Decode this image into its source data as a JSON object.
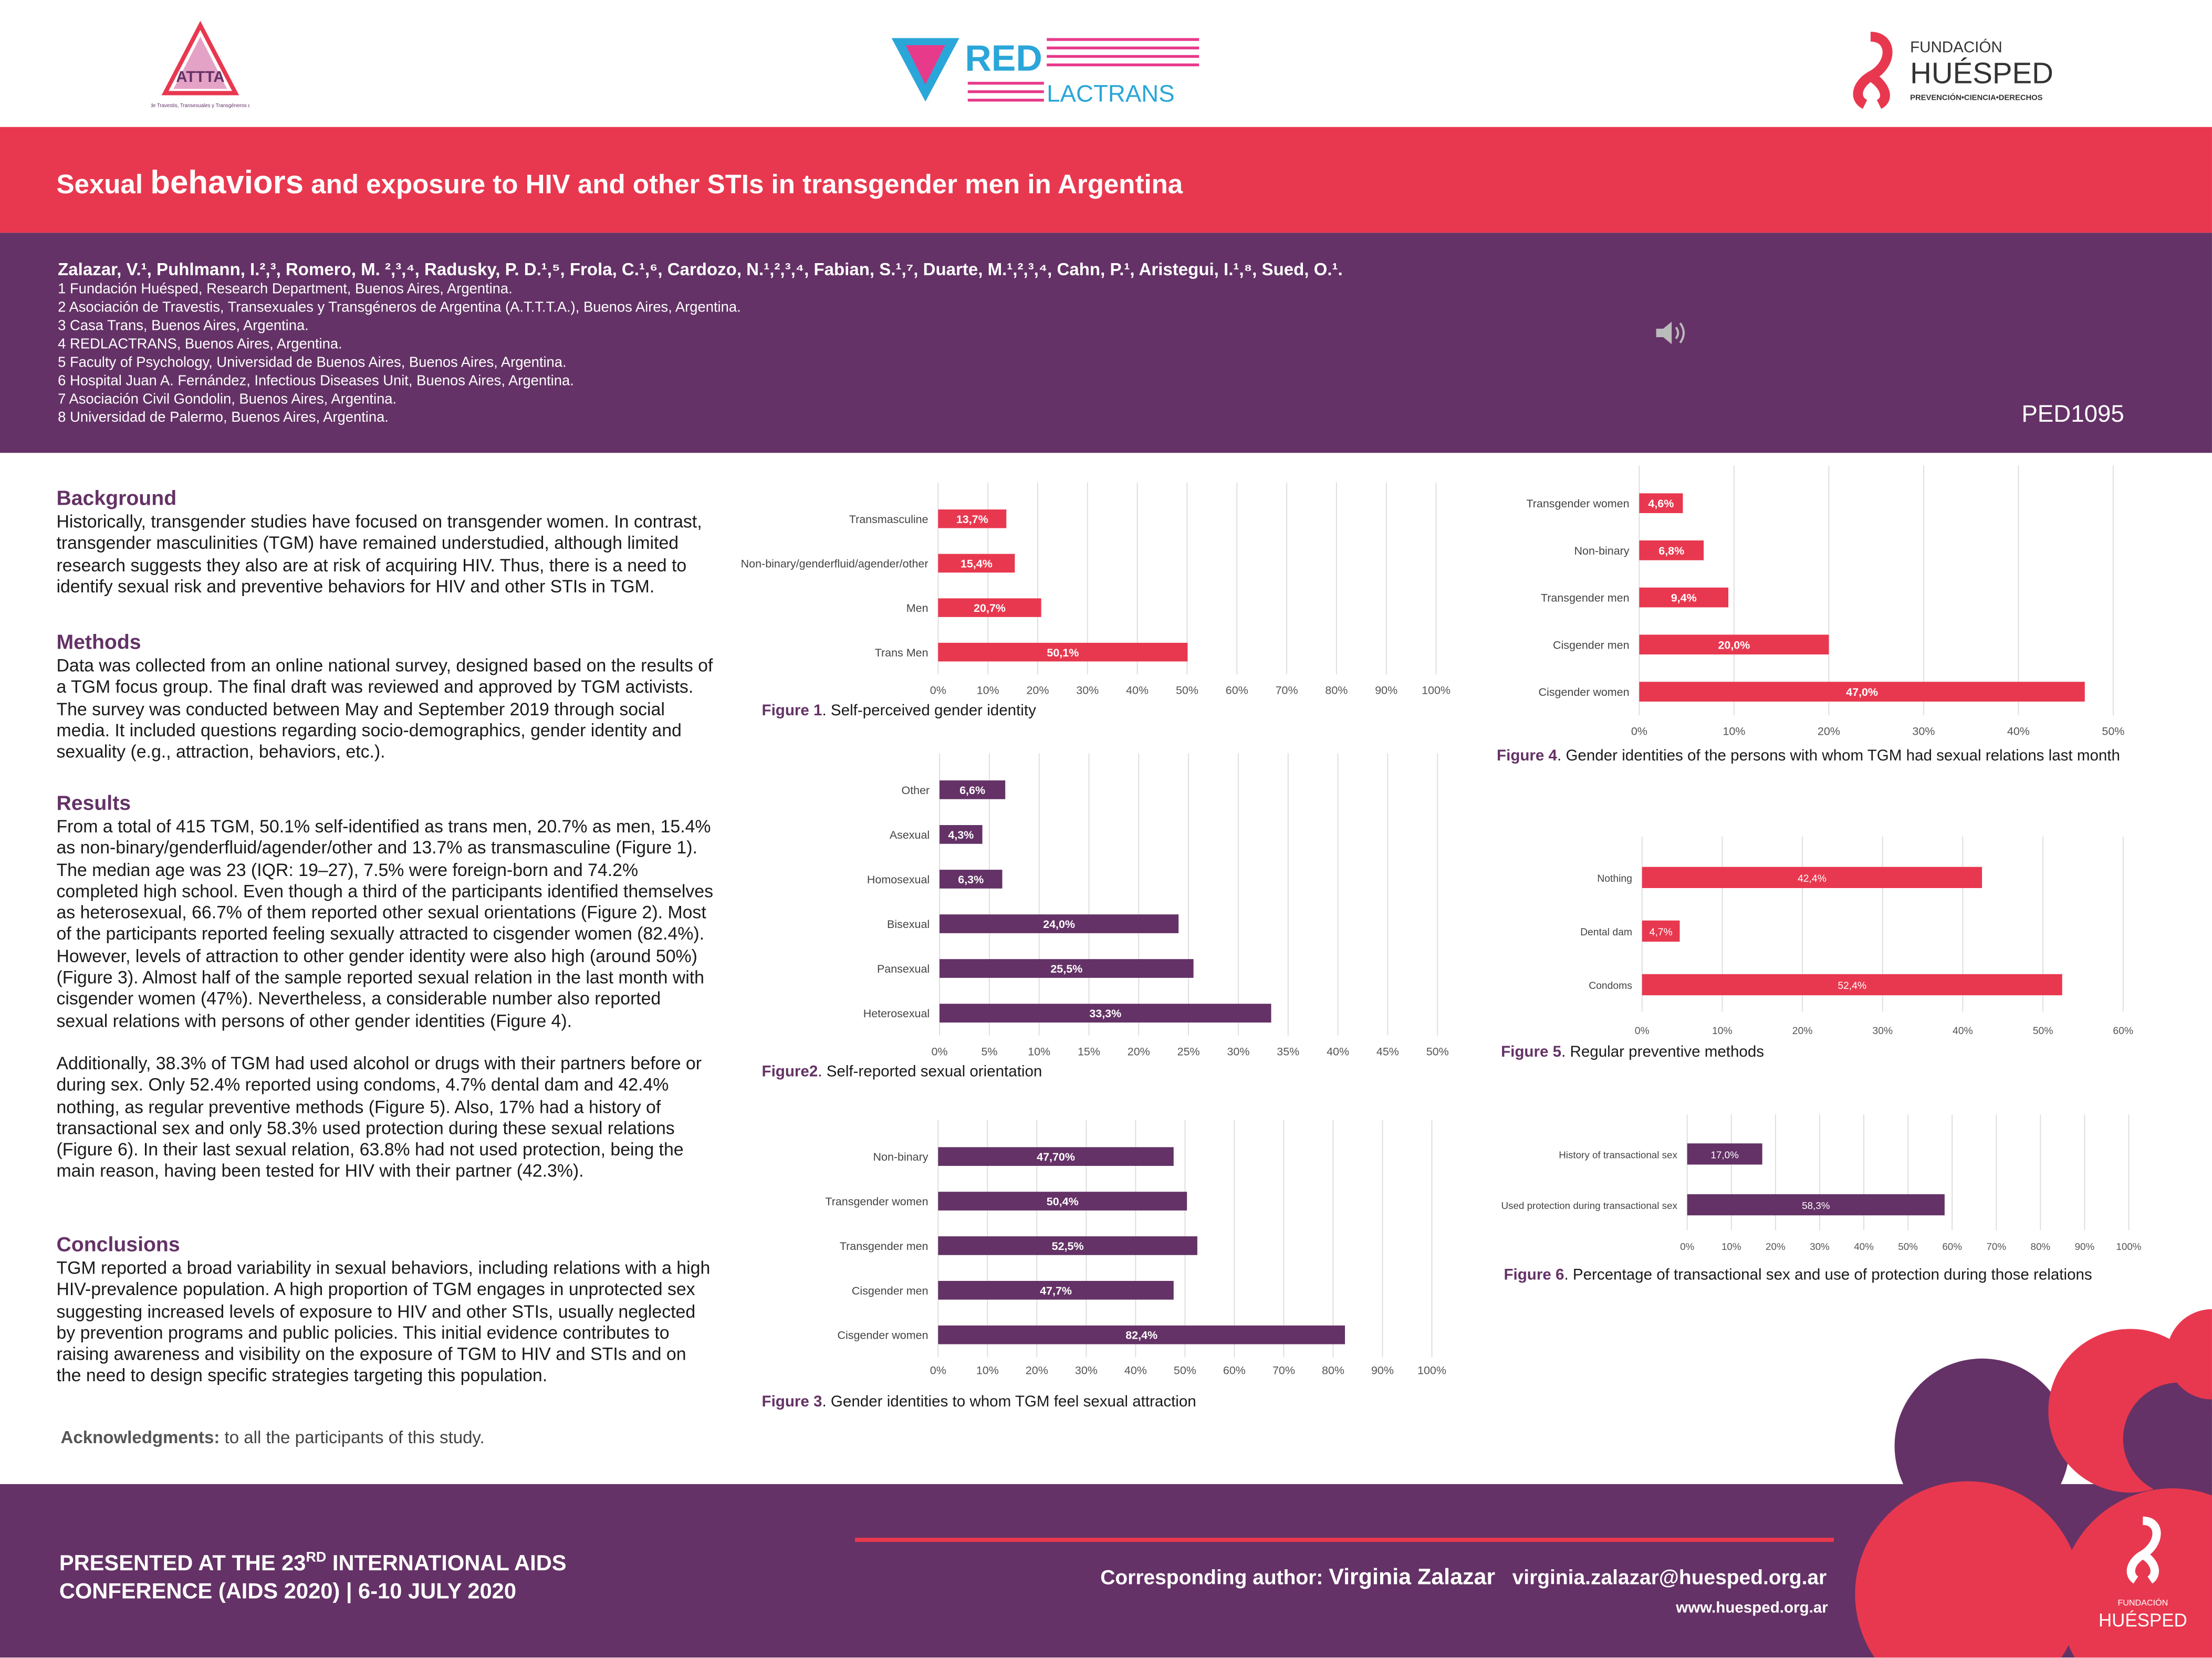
{
  "logos": {
    "attta": "Asociación de Travestis, Transexuales y Transgéneros de Argentina",
    "red": "RED",
    "lactrans": "LACTRANS",
    "fundacion": "FUNDACIÓN",
    "huesped": "HUÉSPED",
    "tagline": "PREVENCIÓN•CIENCIA•DERECHOS"
  },
  "header": {
    "title_pre": "Sexual ",
    "title_big": "behaviors",
    "title_post": " and exposure to HIV and other STIs in transgender men in Argentina",
    "authors": "Zalazar, V.¹, Puhlmann, I.²,³, Romero, M. ²,³,⁴, Radusky, P. D.¹,⁵, Frola, C.¹,⁶, Cardozo, N.¹,²,³,⁴, Fabian, S.¹,⁷, Duarte, M.¹,²,³,⁴, Cahn, P.¹, Aristegui, I.¹,⁸, Sued, O.¹.",
    "affiliations": [
      "1 Fundación Huésped, Research Department, Buenos Aires, Argentina.",
      "2 Asociación de Travestis, Transexuales y Transgéneros de Argentina (A.T.T.T.A.), Buenos Aires, Argentina.",
      "3 Casa Trans, Buenos Aires, Argentina.",
      "4 REDLACTRANS, Buenos Aires, Argentina.",
      "5 Faculty of Psychology, Universidad de Buenos Aires, Buenos Aires, Argentina.",
      "6 Hospital Juan A. Fernández, Infectious Diseases Unit, Buenos Aires, Argentina.",
      "7 Asociación Civil Gondolin, Buenos Aires, Argentina.",
      "8 Universidad de Palermo, Buenos Aires, Argentina."
    ],
    "code": "PED1095",
    "speaker_icon": "speaker-icon"
  },
  "sections": {
    "background": {
      "heading": "Background",
      "text": "Historically, transgender studies have focused on transgender women. In contrast, transgender masculinities (TGM) have remained understudied, although limited research suggests they also are at risk of acquiring HIV. Thus, there is a need to identify sexual risk and preventive behaviors for HIV and other STIs in TGM."
    },
    "methods": {
      "heading": "Methods",
      "text": "Data was collected from an online national survey, designed based on the results of a TGM focus group. The final draft was reviewed and approved by TGM activists. The survey was conducted between May and September 2019 through social media. It included questions regarding socio-demographics, gender identity and sexuality (e.g., attraction, behaviors, etc.)."
    },
    "results": {
      "heading": "Results",
      "text": "From a total of 415 TGM, 50.1% self-identified as trans men, 20.7% as men, 15.4% as non-binary/genderfluid/agender/other and 13.7% as transmasculine (Figure 1). The median age was 23 (IQR: 19–27), 7.5% were foreign-born and 74.2% completed high school. Even though a third of the participants identified themselves as heterosexual, 66.7% of them reported other sexual orientations (Figure 2). Most of the participants reported feeling sexually attracted to cisgender women (82.4%). However, levels of attraction to other gender identity were also high (around 50%) (Figure 3). Almost half of the sample reported sexual relation in the last month with cisgender women (47%). Nevertheless, a considerable number also reported sexual relations with persons of other gender identities (Figure 4).",
      "text2": "Additionally, 38.3% of TGM had used alcohol or drugs with their partners before or during sex. Only 52.4% reported using condoms, 4.7% dental dam and 42.4% nothing, as regular preventive methods (Figure 5). Also, 17% had a history of transactional sex and only 58.3% used protection during these sexual relations (Figure 6). In their last sexual relation, 63.8% had not used protection, being the main reason, having been tested for HIV with their partner (42.3%)."
    },
    "conclusions": {
      "heading": "Conclusions",
      "text": "TGM reported a broad variability in sexual behaviors, including relations with a high HIV-prevalence population. A high proportion of TGM engages in unprotected sex suggesting increased levels of exposure to HIV and other STIs, usually neglected by prevention programs and public policies. This initial evidence contributes to raising awareness and visibility on the exposure of TGM to HIV and STIs and on the need to design specific strategies targeting this population."
    },
    "ack_label": "Acknowledgments:",
    "ack_text": " to all the participants of this study."
  },
  "colors": {
    "red": "#e8384f",
    "purple": "#643266"
  },
  "chart_data": [
    {
      "type": "bar",
      "orientation": "horizontal",
      "fig": "Figure 1",
      "caption": ". Self-perceived gender identity",
      "color": "#e8384f",
      "xlim": [
        0,
        100
      ],
      "ticks": [
        "0%",
        "10%",
        "20%",
        "30%",
        "40%",
        "50%",
        "60%",
        "70%",
        "80%",
        "90%",
        "100%"
      ],
      "grid": true,
      "categories": [
        "Transmasculine",
        "Non-binary/genderfluid/agender/other",
        "Men",
        "Trans Men"
      ],
      "values": [
        13.7,
        15.4,
        20.7,
        50.1
      ],
      "labels": [
        "13,7%",
        "15,4%",
        "20,7%",
        "50,1%"
      ]
    },
    {
      "type": "bar",
      "orientation": "horizontal",
      "fig": "Figure2",
      "caption": ". Self-reported sexual orientation",
      "color": "#643266",
      "xlim": [
        0,
        50
      ],
      "ticks": [
        "0%",
        "5%",
        "10%",
        "15%",
        "20%",
        "25%",
        "30%",
        "35%",
        "40%",
        "45%",
        "50%"
      ],
      "grid": true,
      "categories": [
        "Other",
        "Asexual",
        "Homosexual",
        "Bisexual",
        "Pansexual",
        "Heterosexual"
      ],
      "values": [
        6.6,
        4.3,
        6.3,
        24.0,
        25.5,
        33.3
      ],
      "labels": [
        "6,6%",
        "4,3%",
        "6,3%",
        "24,0%",
        "25,5%",
        "33,3%"
      ]
    },
    {
      "type": "bar",
      "orientation": "horizontal",
      "fig": "Figure 3",
      "caption": ". Gender identities to whom TGM feel sexual attraction",
      "color": "#643266",
      "xlim": [
        0,
        100
      ],
      "ticks": [
        "0%",
        "10%",
        "20%",
        "30%",
        "40%",
        "50%",
        "60%",
        "70%",
        "80%",
        "90%",
        "100%"
      ],
      "grid": true,
      "categories": [
        "Non-binary",
        "Transgender women",
        "Transgender men",
        "Cisgender men",
        "Cisgender women"
      ],
      "values": [
        47.7,
        50.4,
        52.5,
        47.7,
        82.4
      ],
      "labels": [
        "47,70%",
        "50,4%",
        "52,5%",
        "47,7%",
        "82,4%"
      ]
    },
    {
      "type": "bar",
      "orientation": "horizontal",
      "fig": "Figure 4",
      "caption": ". Gender identities of the persons with whom TGM had sexual relations last month",
      "color": "#e8384f",
      "xlim": [
        0,
        50
      ],
      "ticks": [
        "0%",
        "10%",
        "20%",
        "30%",
        "40%",
        "50%"
      ],
      "grid": true,
      "categories": [
        "Transgender women",
        "Non-binary",
        "Transgender men",
        "Cisgender men",
        "Cisgender women"
      ],
      "values": [
        4.6,
        6.8,
        9.4,
        20.0,
        47.0
      ],
      "labels": [
        "4,6%",
        "6,8%",
        "9,4%",
        "20,0%",
        "47,0%"
      ]
    },
    {
      "type": "bar",
      "orientation": "horizontal",
      "fig": "Figure 5",
      "caption": ". Regular preventive methods",
      "color": "#e8384f",
      "xlim": [
        0,
        60
      ],
      "ticks": [
        "0%",
        "10%",
        "20%",
        "30%",
        "40%",
        "50%",
        "60%"
      ],
      "grid": true,
      "categories": [
        "Nothing",
        "Dental dam",
        "Condoms"
      ],
      "values": [
        42.4,
        4.7,
        52.4
      ],
      "labels": [
        "42,4%",
        "4,7%",
        "52,4%"
      ]
    },
    {
      "type": "bar",
      "orientation": "horizontal",
      "fig": "Figure 6",
      "caption": ". Percentage of transactional sex and use of protection during those relations",
      "color": "#643266",
      "xlim": [
        0,
        100
      ],
      "ticks": [
        "0%",
        "10%",
        "20%",
        "30%",
        "40%",
        "50%",
        "60%",
        "70%",
        "80%",
        "90%",
        "100%"
      ],
      "grid": true,
      "categories": [
        "History of transactional sex",
        "Used protection during transactional sex"
      ],
      "values": [
        17.0,
        58.3
      ],
      "labels": [
        "17,0%",
        "58,3%"
      ]
    }
  ],
  "footer": {
    "presented_1": "PRESENTED AT THE 23",
    "presented_sup": "RD",
    "presented_2": " INTERNATIONAL AIDS",
    "presented_3": "CONFERENCE (AIDS 2020) | 6-10 JULY 2020",
    "corr_label": "Corresponding author: ",
    "corr_name": "Virginia Zalazar",
    "corr_email": "virginia.zalazar@huesped.org.ar",
    "website": "www.huesped.org.ar",
    "logo_fundacion": "FUNDACIÓN",
    "logo_huesped": "HUÉSPED"
  }
}
